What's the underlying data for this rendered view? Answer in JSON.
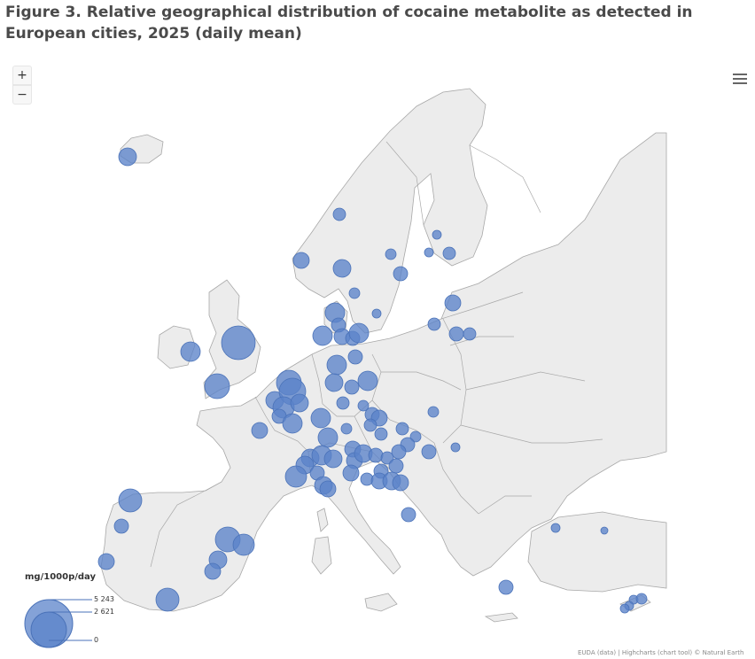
{
  "title": "Figure 3. Relative geographical distribution of cocaine metabolite as detected in European cities, 2025 (daily mean)",
  "controls": {
    "zoom_in": "+",
    "zoom_out": "−",
    "menu_icon": "hamburger-menu-icon"
  },
  "colors": {
    "bubble_fill": "#5b83c9",
    "bubble_stroke": "#4a72b8",
    "land": "#ececec",
    "border": "#a8a8a8",
    "sea": "#ffffff"
  },
  "legend": {
    "title": "mg/1000p/day",
    "max_label": "5 243",
    "mid_label": "2 621",
    "min_label": "0"
  },
  "credits": "EUDA (data) | Highcharts (chart tool) © Natural Earth"
}
